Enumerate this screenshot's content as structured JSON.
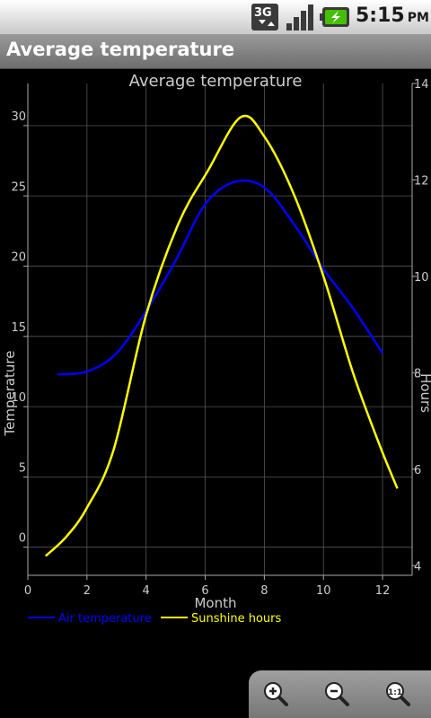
{
  "status_bar": {
    "network_label": "3G",
    "time": "5:15",
    "ampm": "PM",
    "icons": [
      "3g-data-icon",
      "signal-strength-icon",
      "battery-charging-icon"
    ]
  },
  "app_bar": {
    "title": "Average temperature"
  },
  "chart_data": {
    "type": "line",
    "title": "Average temperature",
    "xlabel": "Month",
    "ylabel": "Temperature",
    "y2label": "Hours",
    "xlim": [
      0,
      13
    ],
    "ylim": [
      -2,
      33
    ],
    "y2lim": [
      3.8,
      14
    ],
    "x_ticks": [
      "0",
      "2",
      "4",
      "6",
      "8",
      "10",
      "12"
    ],
    "y_ticks": [
      "0",
      "5",
      "10",
      "15",
      "20",
      "25",
      "30"
    ],
    "y2_ticks": [
      "4",
      "6",
      "8",
      "10",
      "12",
      "14"
    ],
    "grid": true,
    "legend_position": "bottom-left",
    "series": [
      {
        "name": "Air temperature",
        "color": "#0000ff",
        "axis": "left",
        "x": [
          1,
          2,
          3,
          4,
          5,
          6,
          7,
          8,
          9,
          10,
          11,
          12
        ],
        "values": [
          12.3,
          12.5,
          13.8,
          16.8,
          20.4,
          24.4,
          26.0,
          25.6,
          23.0,
          19.8,
          17.0,
          13.8
        ]
      },
      {
        "name": "Sunshine hours",
        "color": "#ffff00",
        "axis": "right",
        "x": [
          0.6,
          1.3,
          2.0,
          2.9,
          4.0,
          5.1,
          6.1,
          7.2,
          8.0,
          9.0,
          10.0,
          11.0,
          11.9,
          12.5
        ],
        "values": [
          4.2,
          4.6,
          5.2,
          6.4,
          9.2,
          11.1,
          12.2,
          13.3,
          12.9,
          11.7,
          10.0,
          8.0,
          6.5,
          5.6
        ]
      }
    ]
  },
  "zoom_controls": {
    "zoom_in": "zoom-in-icon",
    "zoom_out": "zoom-out-icon",
    "zoom_reset": "zoom-reset-icon"
  }
}
